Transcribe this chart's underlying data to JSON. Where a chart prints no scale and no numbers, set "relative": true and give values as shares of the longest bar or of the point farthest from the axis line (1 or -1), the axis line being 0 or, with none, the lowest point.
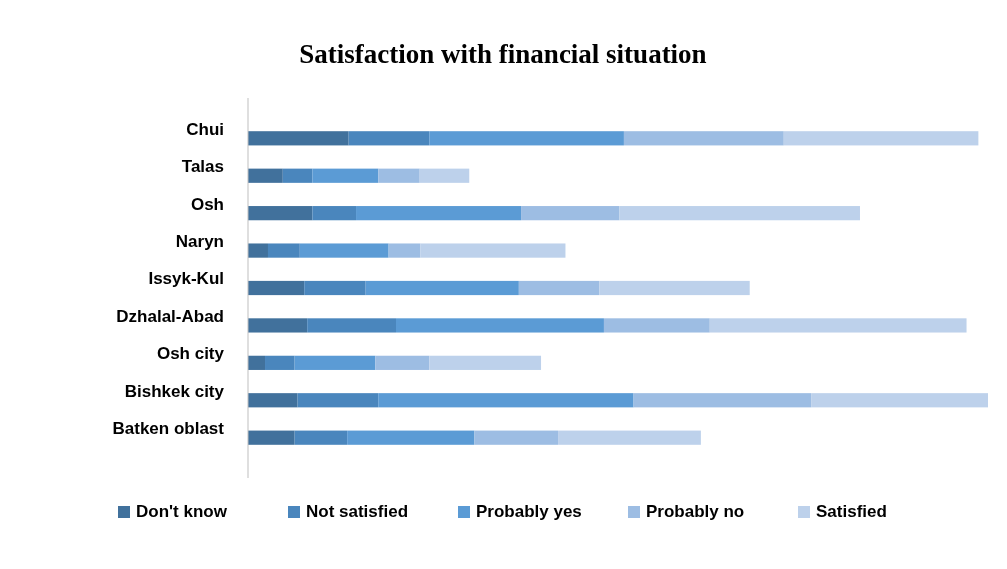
{
  "chart_data": {
    "type": "bar",
    "orientation": "horizontal",
    "stacked": true,
    "relative": true,
    "title": "Satisfaction with financial situation",
    "legend": "bottom",
    "categories": [
      "Chui",
      "Talas",
      "Osh",
      "Naryn",
      "Issyk-Kul",
      "Dzhalal-Abad",
      "Osh city",
      "Bishkek city",
      "Batken oblast"
    ],
    "series": [
      {
        "name": "Don't know",
        "color": "#41719c",
        "values": [
          0.136,
          0.047,
          0.087,
          0.027,
          0.076,
          0.08,
          0.023,
          0.067,
          0.063
        ]
      },
      {
        "name": "Not satisfied",
        "color": "#4a86bd",
        "values": [
          0.109,
          0.04,
          0.059,
          0.043,
          0.083,
          0.12,
          0.04,
          0.109,
          0.071
        ]
      },
      {
        "name": "Probably yes",
        "color": "#5b9bd5",
        "values": [
          0.263,
          0.089,
          0.223,
          0.12,
          0.207,
          0.281,
          0.109,
          0.345,
          0.172
        ]
      },
      {
        "name": "Probably no",
        "color": "#9dbde3",
        "values": [
          0.216,
          0.056,
          0.133,
          0.043,
          0.109,
          0.143,
          0.073,
          0.24,
          0.113
        ]
      },
      {
        "name": "Satisfied",
        "color": "#bdd1eb",
        "values": [
          0.263,
          0.067,
          0.325,
          0.196,
          0.203,
          0.347,
          0.151,
          0.239,
          0.193
        ]
      }
    ]
  }
}
